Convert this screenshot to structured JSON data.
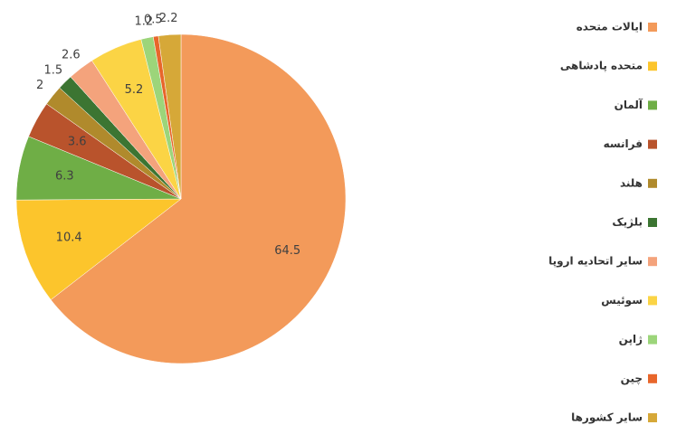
{
  "chart_data": {
    "type": "pie",
    "categories": [
      "ایالات متحده",
      "متحده پادشاهی",
      "آلمان",
      "فرانسه",
      "هلند",
      "بلژیک",
      "سایر اتحادیه اروپا",
      "سوئیس",
      "ژاپن",
      "چین",
      "سایر کشورها"
    ],
    "values": [
      64.5,
      10.4,
      6.3,
      3.6,
      2,
      1.5,
      2.6,
      5.2,
      1.2,
      0.5,
      2.2
    ],
    "colors": [
      "#F39A5A",
      "#FCC52C",
      "#6FAE46",
      "#B9532C",
      "#B08A2C",
      "#3C7532",
      "#F4A37C",
      "#FBD445",
      "#9CD57A",
      "#E8662B",
      "#D6A838"
    ]
  }
}
